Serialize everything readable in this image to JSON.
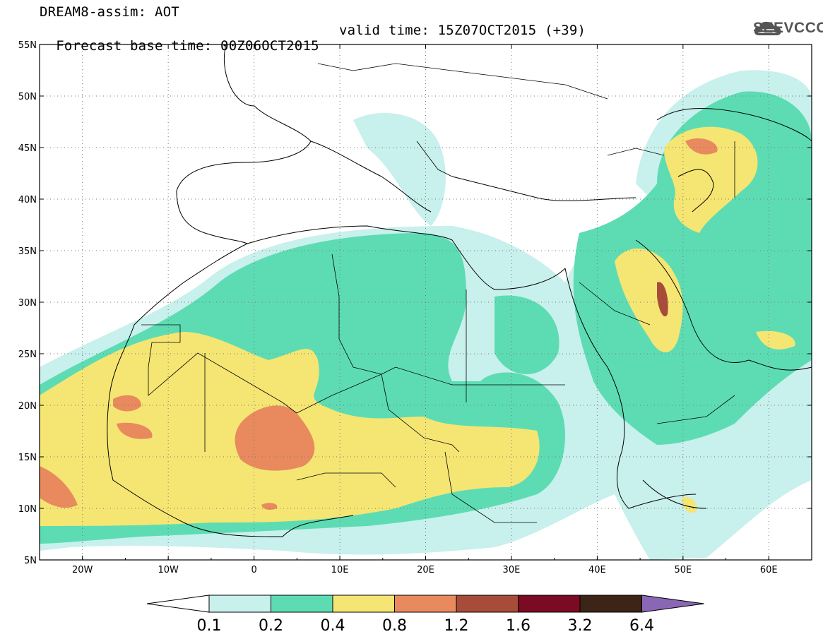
{
  "header": {
    "line1": "DREAM8-assim: AOT",
    "line2_base": "Forecast base time: 00Z06OCT2015",
    "line2_valid": "valid time: 15Z07OCT2015 (+39)",
    "logo_text": "SEEVCCC"
  },
  "map": {
    "lon_range": [
      -25,
      65
    ],
    "lat_range": [
      5,
      55
    ],
    "lon_ticks": [
      "20W",
      "10W",
      "0",
      "10E",
      "20E",
      "30E",
      "40E",
      "50E",
      "60E"
    ],
    "lat_ticks": [
      "5N",
      "10N",
      "15N",
      "20N",
      "25N",
      "30N",
      "35N",
      "40N",
      "45N",
      "50N",
      "55N"
    ],
    "gridlines": "dotted"
  },
  "colorbar": {
    "labels": [
      "0.1",
      "0.2",
      "0.4",
      "0.8",
      "1.2",
      "1.6",
      "3.2",
      "6.4"
    ],
    "colors": [
      "#c8f0ec",
      "#5ddcb4",
      "#f5e673",
      "#e88a5e",
      "#a84c3a",
      "#7a0b23",
      "#3c2416",
      "#8a67b5"
    ]
  }
}
